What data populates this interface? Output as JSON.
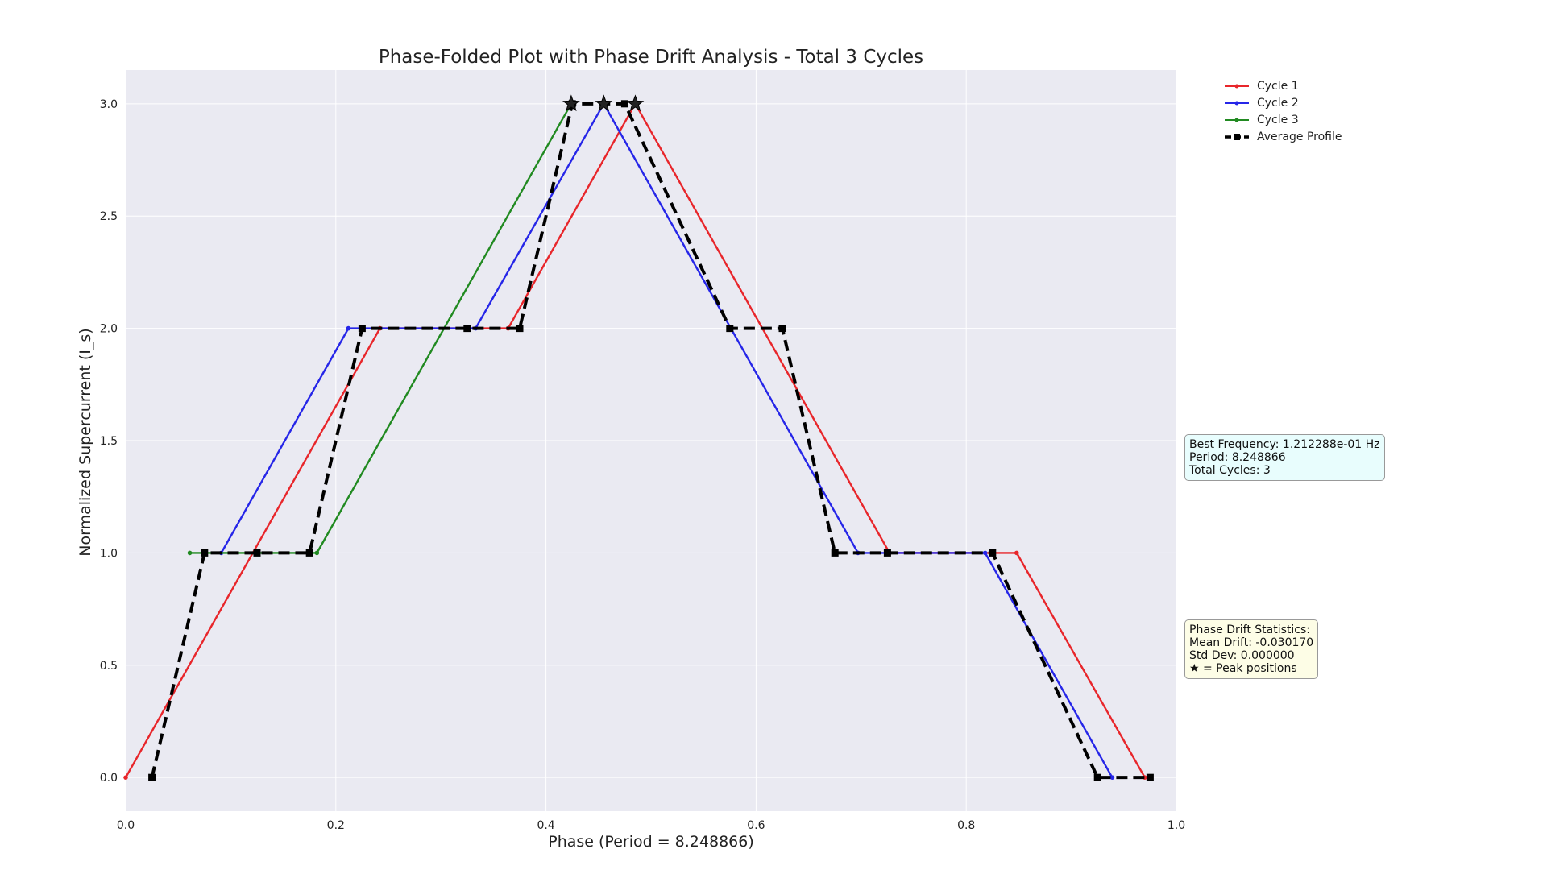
{
  "chart_data": {
    "type": "line",
    "title": "Phase-Folded Plot with Phase Drift Analysis - Total 3 Cycles",
    "xlabel": "Phase (Period = 8.248866)",
    "ylabel": "Normalized Supercurrent (I_s)",
    "xlim": [
      0.0,
      1.0
    ],
    "ylim": [
      -0.15,
      3.15
    ],
    "xticks": [
      0.0,
      0.2,
      0.4,
      0.6,
      0.8,
      1.0
    ],
    "xtick_labels": [
      "0.0",
      "0.2",
      "0.4",
      "0.6",
      "0.8",
      "1.0"
    ],
    "yticks": [
      0.0,
      0.5,
      1.0,
      1.5,
      2.0,
      2.5,
      3.0
    ],
    "ytick_labels": [
      "0.0",
      "0.5",
      "1.0",
      "1.5",
      "2.0",
      "2.5",
      "3.0"
    ],
    "grid": true,
    "legend_position": "upper-right outside plot",
    "series": [
      {
        "name": "Cycle 1",
        "color": "#e8262b",
        "marker": "dot",
        "style": "solid",
        "points": [
          [
            0.0,
            0.0
          ],
          [
            0.242,
            2.0
          ],
          [
            0.364,
            2.0
          ],
          [
            0.485,
            3.0
          ],
          [
            0.727,
            1.0
          ],
          [
            0.848,
            1.0
          ],
          [
            0.97,
            0.0
          ]
        ]
      },
      {
        "name": "Cycle 2",
        "color": "#2626e8",
        "marker": "dot",
        "style": "solid",
        "points": [
          [
            0.091,
            1.0
          ],
          [
            0.212,
            2.0
          ],
          [
            0.333,
            2.0
          ],
          [
            0.455,
            3.0
          ],
          [
            0.697,
            1.0
          ],
          [
            0.818,
            1.0
          ],
          [
            0.939,
            0.0
          ]
        ]
      },
      {
        "name": "Cycle 3",
        "color": "#218a21",
        "marker": "dot",
        "style": "solid",
        "points": [
          [
            0.061,
            1.0
          ],
          [
            0.182,
            1.0
          ],
          [
            0.424,
            3.0
          ]
        ]
      },
      {
        "name": "Average Profile",
        "color": "#000000",
        "marker": "square",
        "style": "dashed",
        "points": [
          [
            0.025,
            0.0
          ],
          [
            0.075,
            1.0
          ],
          [
            0.125,
            1.0
          ],
          [
            0.175,
            1.0
          ],
          [
            0.225,
            2.0
          ],
          [
            0.325,
            2.0
          ],
          [
            0.375,
            2.0
          ],
          [
            0.425,
            3.0
          ],
          [
            0.475,
            3.0
          ],
          [
            0.575,
            2.0
          ],
          [
            0.625,
            2.0
          ],
          [
            0.675,
            1.0
          ],
          [
            0.725,
            1.0
          ],
          [
            0.825,
            1.0
          ],
          [
            0.925,
            0.0
          ],
          [
            0.975,
            0.0
          ]
        ]
      }
    ],
    "peak_markers": [
      [
        0.424,
        3.0
      ],
      [
        0.455,
        3.0
      ],
      [
        0.485,
        3.0
      ]
    ]
  },
  "info": {
    "frequency_lines": [
      "Best Frequency: 1.212288e-01 Hz",
      "Period: 8.248866",
      "Total Cycles: 3"
    ],
    "drift_lines": [
      "Phase Drift Statistics:",
      "Mean Drift: -0.030170",
      "Std Dev: 0.000000",
      "★ = Peak positions"
    ]
  },
  "colors": {
    "plot_background": "#eaeaf2",
    "grid": "#ffffff"
  }
}
